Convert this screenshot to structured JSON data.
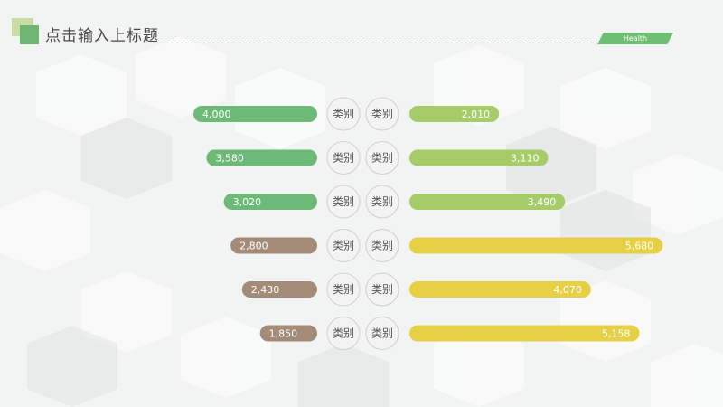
{
  "header": {
    "title": "点击输入上标题",
    "tag": "Health"
  },
  "chart_data": {
    "type": "bar",
    "orientation": "horizontal-butterfly",
    "categories": [
      "类别",
      "类别",
      "类别",
      "类别",
      "类别",
      "类别"
    ],
    "series": [
      {
        "side": "left",
        "values": [
          4000,
          3580,
          3020,
          2800,
          2430,
          1850
        ],
        "colors": [
          "#6dba78",
          "#6dba78",
          "#6dba78",
          "#a48b78",
          "#a48b78",
          "#a48b78"
        ],
        "labels": [
          "4,000",
          "3,580",
          "3,020",
          "2,800",
          "2,430",
          "1,850"
        ]
      },
      {
        "side": "right",
        "values": [
          2010,
          3110,
          3490,
          5680,
          4070,
          5158
        ],
        "colors": [
          "#a6cc6a",
          "#a6cc6a",
          "#a6cc6a",
          "#e6d044",
          "#e6d044",
          "#e6d044"
        ],
        "labels": [
          "2,010",
          "3,110",
          "3,490",
          "5,680",
          "4,070",
          "5,158"
        ]
      }
    ],
    "grid": false
  }
}
